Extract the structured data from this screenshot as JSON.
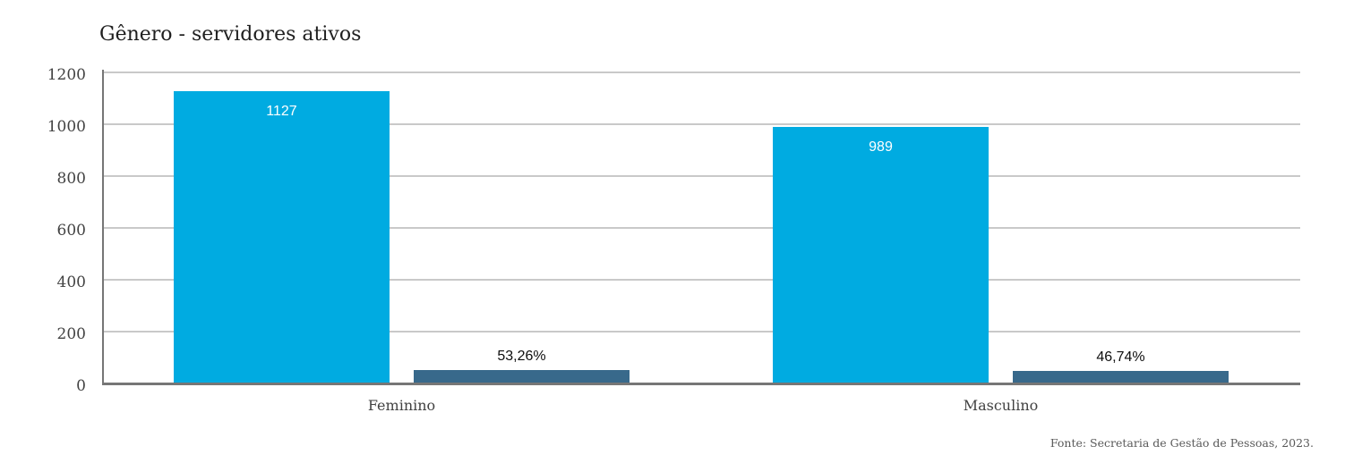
{
  "page": {
    "background": "#ffffff"
  },
  "chart_data": {
    "type": "bar",
    "title": "Gênero - servidores ativos",
    "categories": [
      "Feminino",
      "Masculino"
    ],
    "series": [
      {
        "name": "count",
        "values": [
          1127,
          989
        ],
        "data_labels": [
          "1127",
          "989"
        ],
        "color": "#00ABE1",
        "label_position": "inside-top",
        "label_color": "#ffffff"
      },
      {
        "name": "percent",
        "values": [
          53.26,
          46.74
        ],
        "data_labels": [
          "53,26%",
          "46,74%"
        ],
        "color": "#38698B",
        "label_position": "above",
        "label_color": "#0d0d0d"
      }
    ],
    "ylim": [
      0,
      1200
    ],
    "yticks": [
      0,
      200,
      400,
      600,
      800,
      1000,
      1200
    ],
    "xlabel": "",
    "ylabel": "",
    "grid": "horizontal",
    "legend": "none",
    "source_note": "Fonte: Secretaria de Gestão de Pessoas, 2023."
  }
}
